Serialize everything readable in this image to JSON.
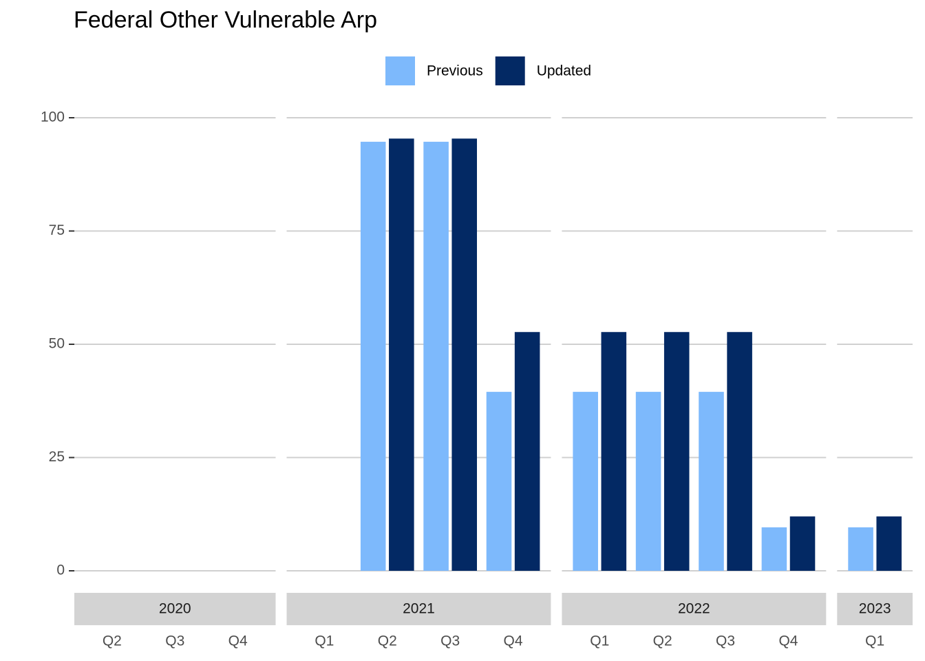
{
  "chart_data": {
    "type": "bar",
    "title": "Federal Other Vulnerable Arp",
    "facets": [
      {
        "name": "2020",
        "categories": [
          "Q2",
          "Q3",
          "Q4"
        ]
      },
      {
        "name": "2021",
        "categories": [
          "Q1",
          "Q2",
          "Q3",
          "Q4"
        ]
      },
      {
        "name": "2022",
        "categories": [
          "Q1",
          "Q2",
          "Q3",
          "Q4"
        ]
      },
      {
        "name": "2023",
        "categories": [
          "Q1"
        ]
      }
    ],
    "series": [
      {
        "name": "Previous",
        "color": "#7db9fc",
        "values": [
          0,
          0,
          0,
          0,
          94.7,
          94.7,
          39.5,
          39.5,
          39.5,
          39.5,
          9.6,
          9.6
        ]
      },
      {
        "name": "Updated",
        "color": "#032964",
        "values": [
          0,
          0,
          0,
          0,
          95.4,
          95.4,
          52.7,
          52.7,
          52.7,
          52.7,
          12.0,
          12.0
        ]
      }
    ],
    "ylim": [
      0,
      100
    ],
    "yticks": [
      0,
      25,
      50,
      75,
      100
    ],
    "grid": true,
    "legend": "top"
  }
}
